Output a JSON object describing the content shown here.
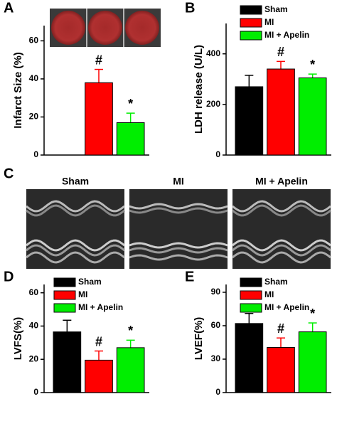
{
  "chart_data": [
    {
      "type": "bar",
      "panel": "A",
      "ylabel": "Infarct Size (%)",
      "ylim": [
        0,
        68
      ],
      "yticks": [
        0,
        20,
        40,
        60
      ],
      "values": [
        null,
        38,
        17
      ],
      "errors": [
        null,
        7,
        5
      ],
      "colors": [
        "#000000",
        "#ff0000",
        "#00ee00"
      ],
      "annotations": [
        null,
        "#",
        "*"
      ]
    },
    {
      "type": "bar",
      "panel": "B",
      "ylabel": "LDH release (U/L)",
      "ylim": [
        0,
        520
      ],
      "yticks": [
        0,
        200,
        400
      ],
      "legend": [
        "Sham",
        "MI",
        "MI + Apelin"
      ],
      "values": [
        270,
        340,
        305
      ],
      "errors": [
        45,
        30,
        15
      ],
      "colors": [
        "#000000",
        "#ff0000",
        "#00ee00"
      ],
      "annotations": [
        null,
        "#",
        "*"
      ]
    },
    {
      "type": "bar",
      "panel": "D",
      "ylabel": "LVFS(%)",
      "ylim": [
        0,
        65
      ],
      "yticks": [
        0,
        20,
        40,
        60
      ],
      "legend": [
        "Sham",
        "MI",
        "MI + Apelin"
      ],
      "values": [
        36.5,
        19.5,
        27
      ],
      "errors": [
        7,
        5.5,
        4.5
      ],
      "colors": [
        "#000000",
        "#ff0000",
        "#00ee00"
      ],
      "annotations": [
        null,
        "#",
        "*"
      ]
    },
    {
      "type": "bar",
      "panel": "E",
      "ylabel": "LVEF(%)",
      "ylim": [
        0,
        97
      ],
      "yticks": [
        0,
        30,
        60,
        90
      ],
      "legend": [
        "Sham",
        "MI",
        "MI + Apelin"
      ],
      "values": [
        62,
        40.5,
        54.5
      ],
      "errors": [
        9,
        8.5,
        8
      ],
      "colors": [
        "#000000",
        "#ff0000",
        "#00ee00"
      ],
      "annotations": [
        null,
        "#",
        "*"
      ]
    }
  ],
  "panel_c": {
    "label": "C",
    "titles": [
      "Sham",
      "MI",
      "MI + Apelin"
    ]
  }
}
